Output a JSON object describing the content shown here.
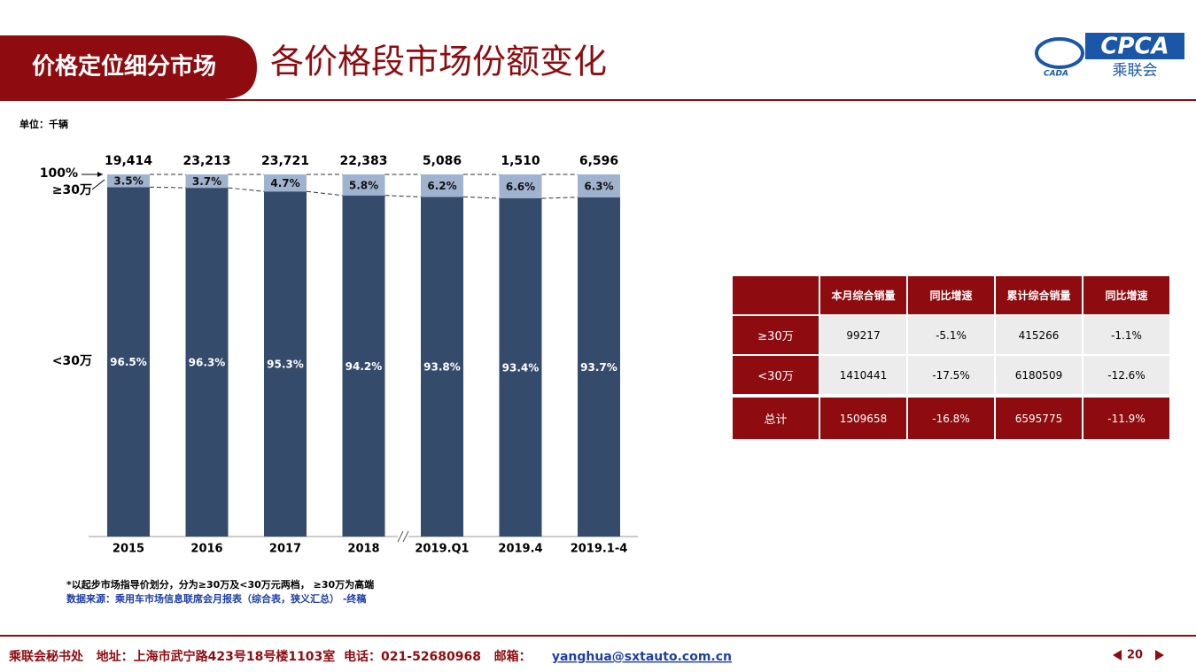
{
  "header": {
    "tab": "价格定位细分市场",
    "title": "各价格段市场份额变化"
  },
  "logo": {
    "mark": "CADA",
    "name": "CPCA",
    "subname": "乘联会"
  },
  "chart_data": {
    "type": "stacked_bar",
    "unit": "单位：千辆",
    "top_annotation": "100%",
    "categories": [
      "2015",
      "2016",
      "2017",
      "2018",
      "2019.Q1",
      "2019.4",
      "2019.1-4"
    ],
    "series": [
      {
        "name": "<30万",
        "color": "#354b6b",
        "values": [
          96.5,
          96.3,
          95.3,
          94.2,
          93.8,
          93.4,
          93.7
        ],
        "value_labels": [
          "96.5%",
          "96.3%",
          "95.3%",
          "94.2%",
          "93.8%",
          "93.4%",
          "93.7%"
        ]
      },
      {
        "name": "≥30万",
        "color": "#9fb3cf",
        "values": [
          3.5,
          3.7,
          4.7,
          5.8,
          6.2,
          6.6,
          6.3
        ],
        "value_labels": [
          "3.5%",
          "3.7%",
          "4.7%",
          "5.8%",
          "6.2%",
          "6.6%",
          "6.3%"
        ]
      }
    ],
    "totals": {
      "values": [
        19414,
        23213,
        23721,
        22383,
        5086,
        1510,
        6596
      ],
      "value_labels": [
        "19,414",
        "23,213",
        "23,721",
        "22,383",
        "5,086",
        "1,510",
        "6,596"
      ]
    },
    "ylim": [
      0,
      100
    ],
    "notes": [
      "*以起步市场指导价划分，分为≥30万及<30万元两档， ≥30万为高端",
      "数据来源：乘用车市场信息联席会月报表（综合表，狭义汇总） -终稿"
    ]
  },
  "table": {
    "columns": [
      "本月综合销量",
      "同比增速",
      "累计综合销量",
      "同比增速"
    ],
    "rows": [
      [
        "≥30万",
        "99217",
        "-5.1%",
        "415266",
        "-1.1%"
      ],
      [
        "<30万",
        "1410441",
        "-17.5%",
        "6180509",
        "-12.6%"
      ],
      [
        "总计",
        "1509658",
        "-16.8%",
        "6595775",
        "-11.9%"
      ]
    ]
  },
  "footer": {
    "text": "乘联会秘书处   地址：上海市武宁路423号18号楼1103室  电话：021-52680968   邮箱：",
    "email": "yanghua@sxtauto.com.cn",
    "page": "20"
  }
}
